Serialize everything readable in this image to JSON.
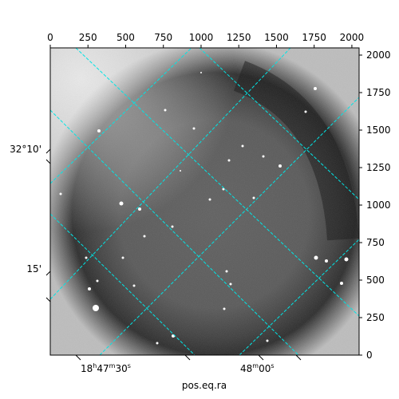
{
  "chart_data": {
    "type": "heatmap",
    "title": "",
    "xlabel": "pos.eq.ra",
    "ylabel": "",
    "pixel_axes": {
      "xlim": [
        0,
        2048
      ],
      "ylim": [
        0,
        2048
      ],
      "top_ticks": [
        0,
        250,
        500,
        750,
        1000,
        1250,
        1500,
        1750,
        2000
      ],
      "right_ticks": [
        0,
        250,
        500,
        750,
        1000,
        1250,
        1500,
        1750,
        2000
      ]
    },
    "world_axes": {
      "ra_tick_labels": [
        {
          "h": "18",
          "m": "47",
          "s": "30"
        },
        {
          "h": "",
          "m": "48",
          "s": "00"
        }
      ],
      "dec_tick_labels": [
        "32°10'",
        "15'"
      ]
    },
    "grid": true,
    "grid_color": "#00e5e5",
    "image": {
      "colormap": "gray",
      "description_values": {
        "background_level": 0.45,
        "dark_ring_level": 0.2
      }
    }
  }
}
